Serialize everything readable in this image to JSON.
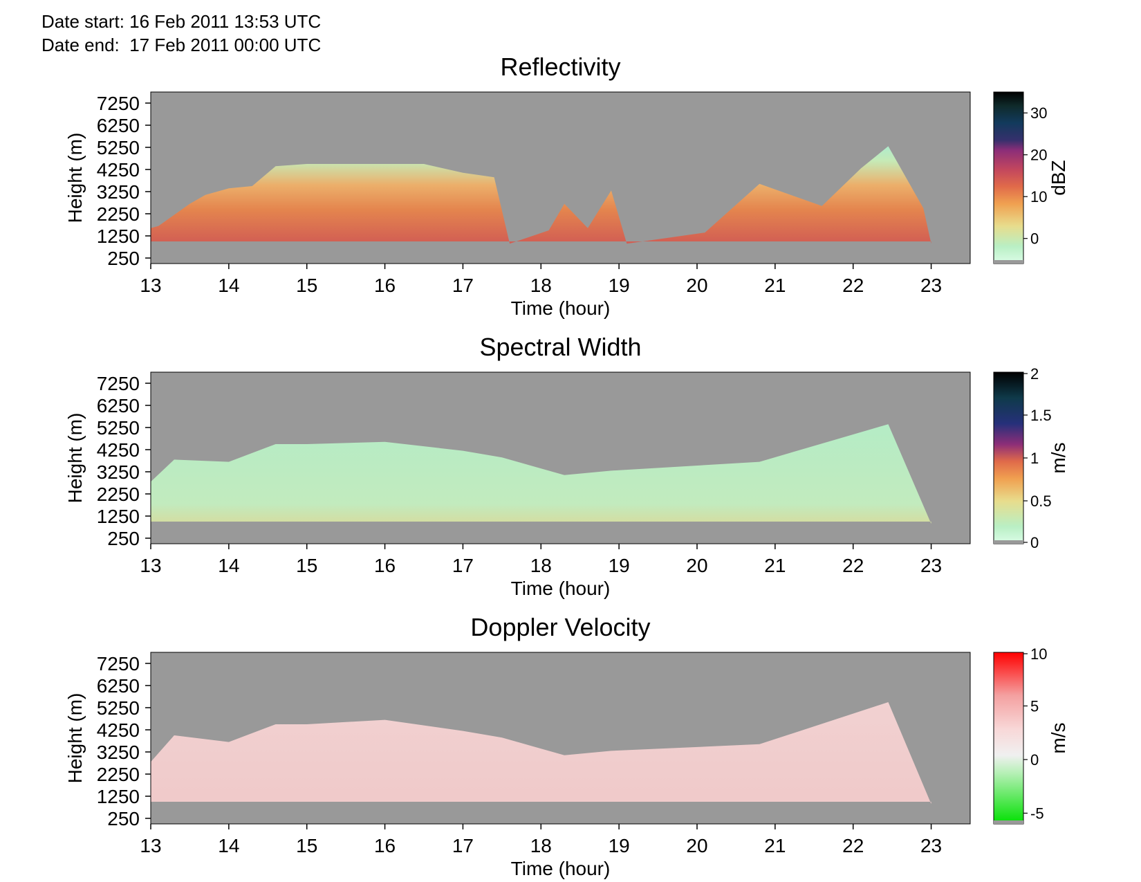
{
  "header": {
    "date_start": "Date start: 16 Feb 2011 13:53 UTC",
    "date_end": "Date end:  17 Feb 2011 00:00 UTC"
  },
  "colors": {
    "background_no_echo": "#999999",
    "reflectivity_ramp": [
      "#dcfde8",
      "#b9efc4",
      "#e8dc8c",
      "#f0a050",
      "#e06a4a",
      "#c2465e",
      "#8c2e78",
      "#35306c",
      "#123a5c",
      "#000000"
    ],
    "width_ramp": [
      "#dcfde8",
      "#b9efc4",
      "#e8dc8c",
      "#f0a050",
      "#e06a4a",
      "#8c2e78",
      "#26307a",
      "#0f3a4a",
      "#000000"
    ],
    "velocity_ramp": [
      "#00e000",
      "#e0f0e0",
      "#f8e8e8",
      "#f4c4c4",
      "#f08080",
      "#ff0000"
    ]
  },
  "chart_data": [
    {
      "type": "heatmap",
      "title": "Reflectivity",
      "xlabel": "Time (hour)",
      "ylabel": "Height (m)",
      "xlim": [
        13,
        23.5
      ],
      "ylim": [
        0,
        7750
      ],
      "x_ticks": [
        13,
        14,
        15,
        16,
        17,
        18,
        19,
        20,
        21,
        22,
        23
      ],
      "y_ticks": [
        250,
        1250,
        2250,
        3250,
        4250,
        5250,
        6250,
        7250
      ],
      "colorbar": {
        "label": "dBZ",
        "range": [
          -6,
          35
        ],
        "ticks": [
          0,
          10,
          20,
          30
        ]
      },
      "echo_tops": [
        {
          "x": 13.0,
          "y": 1600
        },
        {
          "x": 13.1,
          "y": 1700
        },
        {
          "x": 13.5,
          "y": 2700
        },
        {
          "x": 13.7,
          "y": 3100
        },
        {
          "x": 14.0,
          "y": 3400
        },
        {
          "x": 14.3,
          "y": 3500
        },
        {
          "x": 14.6,
          "y": 4400
        },
        {
          "x": 15.0,
          "y": 4500
        },
        {
          "x": 15.5,
          "y": 4500
        },
        {
          "x": 16.0,
          "y": 4500
        },
        {
          "x": 16.5,
          "y": 4500
        },
        {
          "x": 17.0,
          "y": 4100
        },
        {
          "x": 17.4,
          "y": 3900
        },
        {
          "x": 17.6,
          "y": 900
        },
        {
          "x": 18.1,
          "y": 1500
        },
        {
          "x": 18.3,
          "y": 2700
        },
        {
          "x": 18.6,
          "y": 1600
        },
        {
          "x": 18.9,
          "y": 3300
        },
        {
          "x": 19.1,
          "y": 900
        },
        {
          "x": 20.1,
          "y": 1400
        },
        {
          "x": 20.8,
          "y": 3600
        },
        {
          "x": 21.6,
          "y": 2600
        },
        {
          "x": 22.1,
          "y": 4300
        },
        {
          "x": 22.45,
          "y": 5300
        },
        {
          "x": 22.9,
          "y": 2500
        },
        {
          "x": 23.0,
          "y": 900
        }
      ]
    },
    {
      "type": "heatmap",
      "title": "Spectral Width",
      "xlabel": "Time (hour)",
      "ylabel": "Height (m)",
      "xlim": [
        13,
        23.5
      ],
      "ylim": [
        0,
        7750
      ],
      "x_ticks": [
        13,
        14,
        15,
        16,
        17,
        18,
        19,
        20,
        21,
        22,
        23
      ],
      "y_ticks": [
        250,
        1250,
        2250,
        3250,
        4250,
        5250,
        6250,
        7250
      ],
      "colorbar": {
        "label": "m/s",
        "range": [
          0,
          2
        ],
        "ticks": [
          0,
          0.5,
          1,
          1.5,
          2
        ]
      },
      "echo_tops": [
        {
          "x": 13.0,
          "y": 2800
        },
        {
          "x": 13.3,
          "y": 3800
        },
        {
          "x": 14.0,
          "y": 3700
        },
        {
          "x": 14.6,
          "y": 4500
        },
        {
          "x": 15.0,
          "y": 4500
        },
        {
          "x": 16.0,
          "y": 4600
        },
        {
          "x": 17.0,
          "y": 4200
        },
        {
          "x": 17.5,
          "y": 3900
        },
        {
          "x": 18.3,
          "y": 3100
        },
        {
          "x": 18.9,
          "y": 3300
        },
        {
          "x": 20.8,
          "y": 3700
        },
        {
          "x": 22.45,
          "y": 5400
        },
        {
          "x": 23.0,
          "y": 900
        }
      ]
    },
    {
      "type": "heatmap",
      "title": "Doppler Velocity",
      "xlabel": "Time (hour)",
      "ylabel": "Height (m)",
      "xlim": [
        13,
        23.5
      ],
      "ylim": [
        0,
        7750
      ],
      "x_ticks": [
        13,
        14,
        15,
        16,
        17,
        18,
        19,
        20,
        21,
        22,
        23
      ],
      "y_ticks": [
        250,
        1250,
        2250,
        3250,
        4250,
        5250,
        6250,
        7250
      ],
      "colorbar": {
        "label": "m/s",
        "range": [
          -6,
          10
        ],
        "ticks": [
          -5,
          0,
          5,
          10
        ]
      },
      "echo_tops": [
        {
          "x": 13.0,
          "y": 2800
        },
        {
          "x": 13.3,
          "y": 4000
        },
        {
          "x": 14.0,
          "y": 3700
        },
        {
          "x": 14.6,
          "y": 4500
        },
        {
          "x": 15.0,
          "y": 4500
        },
        {
          "x": 16.0,
          "y": 4700
        },
        {
          "x": 17.0,
          "y": 4200
        },
        {
          "x": 17.5,
          "y": 3900
        },
        {
          "x": 18.3,
          "y": 3100
        },
        {
          "x": 18.9,
          "y": 3300
        },
        {
          "x": 20.8,
          "y": 3600
        },
        {
          "x": 22.45,
          "y": 5500
        },
        {
          "x": 23.0,
          "y": 900
        }
      ]
    }
  ]
}
